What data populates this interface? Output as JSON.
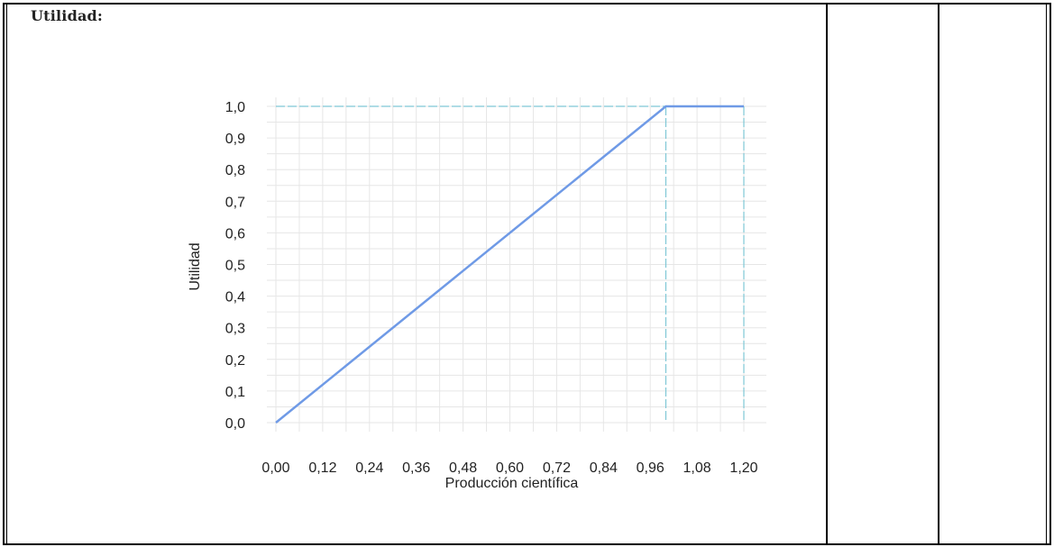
{
  "cell": {
    "label": "Utilidad:"
  },
  "colors": {
    "line": "#6f9ae6",
    "dashed": "#7fc7d6",
    "grid": "#e6e6e6",
    "border": "#000000"
  },
  "chart_data": {
    "type": "line",
    "title": "",
    "xlabel": "Producción científica",
    "ylabel": "Utilidad",
    "xlim": [
      0.0,
      1.2
    ],
    "ylim": [
      0.0,
      1.0
    ],
    "x_ticks": [
      "0,00",
      "0,12",
      "0,24",
      "0,36",
      "0,48",
      "0,60",
      "0,72",
      "0,84",
      "0,96",
      "1,08",
      "1,20"
    ],
    "x_tick_values": [
      0.0,
      0.12,
      0.24,
      0.36,
      0.48,
      0.6,
      0.72,
      0.84,
      0.96,
      1.08,
      1.2
    ],
    "y_ticks": [
      "0,0",
      "0,1",
      "0,2",
      "0,3",
      "0,4",
      "0,5",
      "0,6",
      "0,7",
      "0,8",
      "0,9",
      "1,0"
    ],
    "y_tick_values": [
      0.0,
      0.1,
      0.2,
      0.3,
      0.4,
      0.5,
      0.6,
      0.7,
      0.8,
      0.9,
      1.0
    ],
    "grid": true,
    "series": [
      {
        "x": [
          0.0,
          1.0,
          1.2
        ],
        "y": [
          0.0,
          1.0,
          1.0
        ]
      }
    ],
    "reference_lines": [
      {
        "orientation": "horizontal",
        "value": 1.0,
        "style": "dashed"
      },
      {
        "orientation": "vertical",
        "value": 1.0,
        "style": "dashed"
      },
      {
        "orientation": "vertical",
        "value": 1.2,
        "style": "dashed"
      }
    ]
  }
}
